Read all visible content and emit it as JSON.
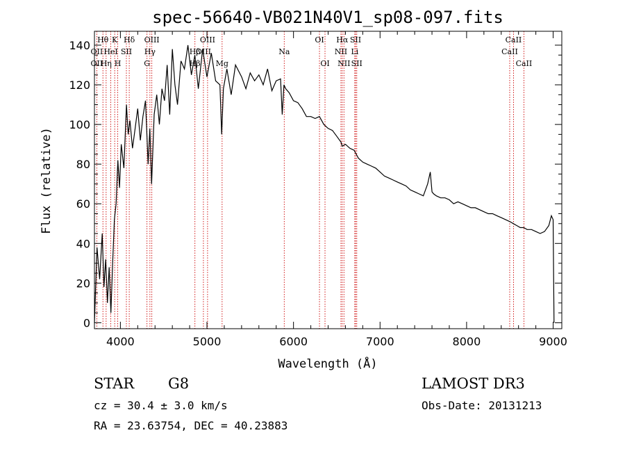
{
  "chart_data": {
    "type": "line",
    "title": "spec-56640-VB021N40V1_sp08-097.fits",
    "xlabel": "Wavelength (Å)",
    "ylabel": "Flux (relative)",
    "xlim": [
      3700,
      9100
    ],
    "ylim": [
      -3,
      147
    ],
    "xticks": [
      4000,
      5000,
      6000,
      7000,
      8000,
      9000
    ],
    "xtick_labels": [
      "4000",
      "5000",
      "6000",
      "7000",
      "8000",
      "9000"
    ],
    "yticks": [
      0,
      20,
      40,
      60,
      80,
      100,
      120,
      140
    ],
    "ytick_labels": [
      "0",
      "20",
      "40",
      "60",
      "80",
      "100",
      "120",
      "140"
    ],
    "grid": false,
    "series": [
      {
        "name": "flux",
        "x": [
          3700,
          3730,
          3760,
          3790,
          3810,
          3830,
          3850,
          3870,
          3890,
          3910,
          3930,
          3950,
          3970,
          3990,
          4010,
          4040,
          4070,
          4090,
          4110,
          4140,
          4170,
          4200,
          4230,
          4260,
          4290,
          4320,
          4340,
          4360,
          4390,
          4420,
          4450,
          4480,
          4510,
          4540,
          4570,
          4600,
          4630,
          4660,
          4700,
          4740,
          4780,
          4820,
          4860,
          4900,
          4950,
          5000,
          5050,
          5100,
          5150,
          5170,
          5190,
          5230,
          5280,
          5330,
          5400,
          5450,
          5500,
          5550,
          5600,
          5650,
          5700,
          5750,
          5800,
          5850,
          5870,
          5890,
          5910,
          5950,
          6000,
          6050,
          6100,
          6150,
          6200,
          6250,
          6300,
          6350,
          6400,
          6450,
          6500,
          6550,
          6563,
          6600,
          6650,
          6700,
          6750,
          6800,
          6850,
          6900,
          6950,
          7000,
          7050,
          7100,
          7150,
          7200,
          7250,
          7300,
          7350,
          7400,
          7450,
          7500,
          7550,
          7580,
          7600,
          7620,
          7650,
          7700,
          7750,
          7800,
          7850,
          7900,
          7950,
          8000,
          8050,
          8100,
          8150,
          8200,
          8250,
          8300,
          8350,
          8400,
          8450,
          8500,
          8540,
          8580,
          8620,
          8660,
          8700,
          8750,
          8800,
          8850,
          8900,
          8950,
          8980,
          9000,
          9010
        ],
        "values": [
          0,
          38,
          22,
          45,
          18,
          32,
          10,
          28,
          5,
          30,
          52,
          60,
          82,
          68,
          90,
          78,
          110,
          95,
          102,
          88,
          98,
          108,
          92,
          104,
          112,
          80,
          98,
          70,
          105,
          115,
          100,
          118,
          112,
          130,
          105,
          138,
          120,
          110,
          132,
          128,
          140,
          125,
          135,
          118,
          138,
          124,
          136,
          122,
          120,
          95,
          118,
          128,
          115,
          130,
          124,
          118,
          126,
          122,
          125,
          120,
          128,
          117,
          122,
          123,
          105,
          120,
          118,
          116,
          112,
          111,
          108,
          104,
          104,
          103,
          104,
          100,
          98,
          97,
          94,
          91,
          89,
          90,
          88,
          87,
          83,
          81,
          80,
          79,
          78,
          76,
          74,
          73,
          72,
          71,
          70,
          69,
          67,
          66,
          65,
          64,
          70,
          76,
          66,
          65,
          64,
          63,
          63,
          62,
          60,
          61,
          60,
          59,
          58,
          58,
          57,
          56,
          55,
          55,
          54,
          53,
          52,
          51,
          50,
          49,
          48,
          48,
          47,
          47,
          46,
          45,
          46,
          49,
          54,
          52,
          0
        ]
      }
    ],
    "spectral_lines": [
      {
        "label": "Hθ",
        "x": 3798,
        "row": 0
      },
      {
        "label": "K",
        "x": 3934,
        "row": 0
      },
      {
        "label": "Hδ",
        "x": 4102,
        "row": 0
      },
      {
        "label": "OIII",
        "x": 4363,
        "row": 0
      },
      {
        "label": "OII",
        "x": 3727,
        "row": 1
      },
      {
        "label": "HeI",
        "x": 3889,
        "row": 1
      },
      {
        "label": "SII",
        "x": 4069,
        "row": 1
      },
      {
        "label": "Hγ",
        "x": 4341,
        "row": 1
      },
      {
        "label": "OII",
        "x": 3727,
        "row": 2
      },
      {
        "label": "Hη",
        "x": 3835,
        "row": 2
      },
      {
        "label": "H",
        "x": 3969,
        "row": 2
      },
      {
        "label": "G",
        "x": 4307,
        "row": 2
      },
      {
        "label": "OIII",
        "x": 5007,
        "row": 0
      },
      {
        "label": "Hβ",
        "x": 4861,
        "row": 1
      },
      {
        "label": "OIII",
        "x": 4959,
        "row": 1
      },
      {
        "label": "Hβ",
        "x": 4861,
        "row": 2
      },
      {
        "label": "Mg",
        "x": 5175,
        "row": 2
      },
      {
        "label": "Na",
        "x": 5893,
        "row": 1
      },
      {
        "label": "OI",
        "x": 6300,
        "row": 0
      },
      {
        "label": "OI",
        "x": 6364,
        "row": 2
      },
      {
        "label": "Hα",
        "x": 6563,
        "row": 0
      },
      {
        "label": "SII",
        "x": 6717,
        "row": 0
      },
      {
        "label": "NII",
        "x": 6548,
        "row": 1
      },
      {
        "label": "Li",
        "x": 6708,
        "row": 1
      },
      {
        "label": "NII",
        "x": 6583,
        "row": 2
      },
      {
        "label": "SII",
        "x": 6731,
        "row": 2
      },
      {
        "label": "CaII",
        "x": 8542,
        "row": 0
      },
      {
        "label": "CaII",
        "x": 8498,
        "row": 1
      },
      {
        "label": "CaII",
        "x": 8662,
        "row": 2
      }
    ],
    "line_markers_x": [
      3727,
      3798,
      3835,
      3889,
      3934,
      3969,
      4069,
      4102,
      4307,
      4341,
      4363,
      4861,
      4959,
      5007,
      5175,
      5893,
      6300,
      6364,
      6548,
      6563,
      6583,
      6708,
      6717,
      6731,
      8498,
      8542,
      8662
    ]
  },
  "info": {
    "object_type": "STAR",
    "subclass": "G8",
    "survey": "LAMOST DR3",
    "redshift": "cz = 30.4 ± 3.0 km/s",
    "obs_date": "Obs-Date: 20131213",
    "coords": "RA =  23.63754, DEC =  40.23883"
  },
  "colors": {
    "line_marker": "#cc0000",
    "spectrum": "#000000",
    "axes": "#000000"
  }
}
